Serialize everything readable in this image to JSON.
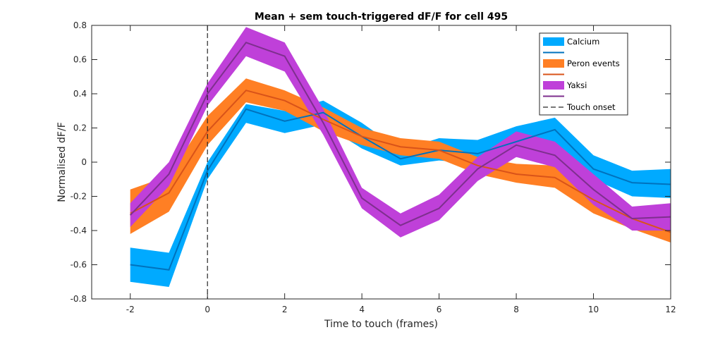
{
  "chart_data": {
    "type": "line",
    "title": "Mean + sem touch-triggered dF/F for cell 495",
    "xlabel": "Time to touch (frames)",
    "ylabel": "Normalised dF/F",
    "xlim": [
      -3,
      12
    ],
    "ylim": [
      -0.8,
      0.8
    ],
    "xticks": [
      -2,
      0,
      2,
      4,
      6,
      8,
      10,
      12
    ],
    "yticks": [
      -0.8,
      -0.6,
      -0.4,
      -0.2,
      0,
      0.2,
      0.4,
      0.6,
      0.8
    ],
    "grid": false,
    "legend_position": "top-right",
    "x": [
      -2,
      -1,
      0,
      1,
      2,
      3,
      4,
      5,
      6,
      7,
      8,
      9,
      10,
      11,
      12
    ],
    "series": [
      {
        "name": "Calcium",
        "fill_color": "#00aaff",
        "line_color": "#0072bd",
        "mean": [
          -0.6,
          -0.63,
          -0.05,
          0.31,
          0.24,
          0.29,
          0.15,
          0.02,
          0.07,
          0.05,
          0.12,
          0.19,
          -0.04,
          -0.12,
          -0.13
        ],
        "upper": [
          -0.5,
          -0.53,
          0.0,
          0.34,
          0.3,
          0.36,
          0.23,
          0.07,
          0.14,
          0.13,
          0.21,
          0.26,
          0.04,
          -0.05,
          -0.04
        ],
        "lower": [
          -0.7,
          -0.73,
          -0.1,
          0.23,
          0.17,
          0.22,
          0.08,
          -0.02,
          0.01,
          -0.01,
          0.03,
          0.11,
          -0.1,
          -0.2,
          -0.21
        ]
      },
      {
        "name": "Peron events",
        "fill_color": "#ff7f24",
        "line_color": "#d95319",
        "mean": [
          -0.3,
          -0.18,
          0.18,
          0.42,
          0.36,
          0.25,
          0.15,
          0.09,
          0.07,
          -0.02,
          -0.07,
          -0.09,
          -0.22,
          -0.33,
          -0.41
        ],
        "upper": [
          -0.16,
          -0.08,
          0.27,
          0.49,
          0.42,
          0.32,
          0.2,
          0.14,
          0.12,
          0.03,
          -0.01,
          -0.02,
          -0.14,
          -0.27,
          -0.35
        ],
        "lower": [
          -0.42,
          -0.29,
          0.1,
          0.35,
          0.3,
          0.18,
          0.1,
          0.04,
          0.02,
          -0.07,
          -0.12,
          -0.15,
          -0.3,
          -0.39,
          -0.47
        ]
      },
      {
        "name": "Yaksi",
        "fill_color": "#bf40d9",
        "line_color": "#7e2f8e",
        "mean": [
          -0.31,
          -0.07,
          0.4,
          0.7,
          0.62,
          0.23,
          -0.21,
          -0.37,
          -0.27,
          -0.04,
          0.1,
          0.04,
          -0.16,
          -0.33,
          -0.32
        ],
        "upper": [
          -0.24,
          0.0,
          0.46,
          0.79,
          0.7,
          0.31,
          -0.15,
          -0.3,
          -0.19,
          0.03,
          0.18,
          0.12,
          -0.07,
          -0.26,
          -0.24
        ],
        "lower": [
          -0.38,
          -0.14,
          0.33,
          0.62,
          0.53,
          0.16,
          -0.27,
          -0.44,
          -0.34,
          -0.11,
          0.03,
          -0.03,
          -0.25,
          -0.4,
          -0.4
        ]
      }
    ],
    "vline": {
      "x": 0,
      "name": "Touch onset",
      "color": "#262626"
    }
  }
}
